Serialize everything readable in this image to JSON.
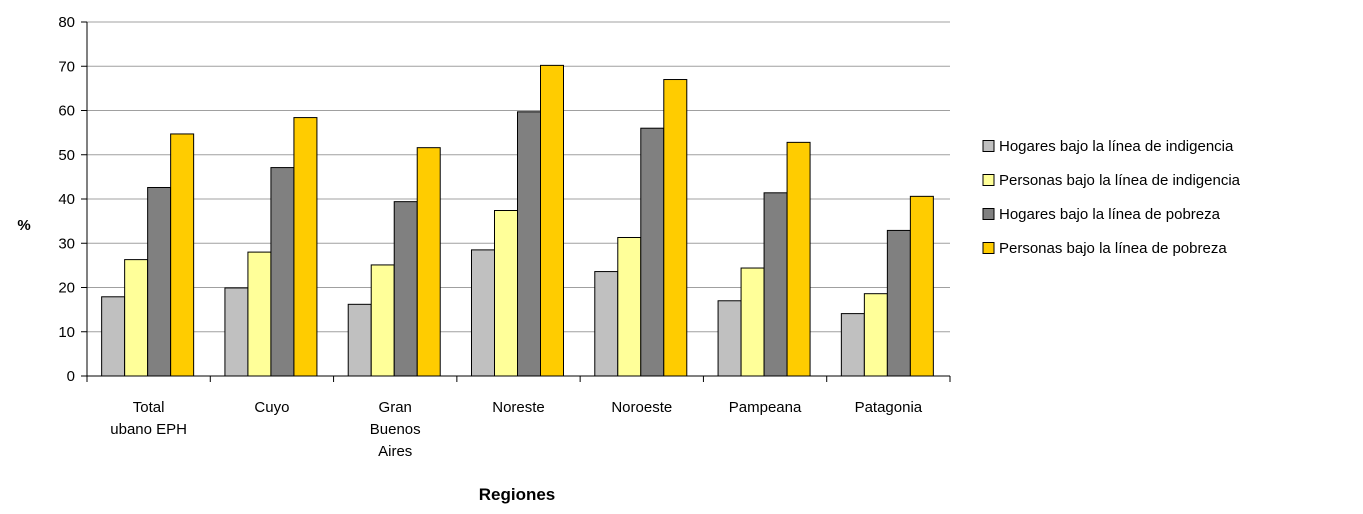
{
  "chart_data": {
    "type": "bar",
    "title": "",
    "xlabel": "Regiones",
    "ylabel": "%",
    "ylim": [
      0,
      80
    ],
    "ytick_step": 10,
    "grid": true,
    "legend_position": "right",
    "categories": [
      [
        "Total",
        "ubano EPH"
      ],
      [
        "Cuyo"
      ],
      [
        "Gran",
        "Buenos",
        "Aires"
      ],
      [
        "Noreste"
      ],
      [
        "Noroeste"
      ],
      [
        "Pampeana"
      ],
      [
        "Patagonia"
      ]
    ],
    "series": [
      {
        "name": "Hogares bajo la línea de indigencia",
        "color": "#c0c0c0",
        "values": [
          17.9,
          19.9,
          16.2,
          28.5,
          23.6,
          17.0,
          14.1
        ]
      },
      {
        "name": "Personas bajo la línea de indigencia",
        "color": "#ffff99",
        "values": [
          26.3,
          28.0,
          25.1,
          37.4,
          31.3,
          24.4,
          18.6
        ]
      },
      {
        "name": "Hogares bajo la línea de pobreza",
        "color": "#808080",
        "values": [
          42.6,
          47.1,
          39.4,
          59.7,
          56.0,
          41.4,
          32.9
        ]
      },
      {
        "name": "Personas bajo la línea de pobreza",
        "color": "#ffcc00",
        "values": [
          54.7,
          58.4,
          51.6,
          70.2,
          67.0,
          52.8,
          40.6
        ]
      }
    ]
  }
}
